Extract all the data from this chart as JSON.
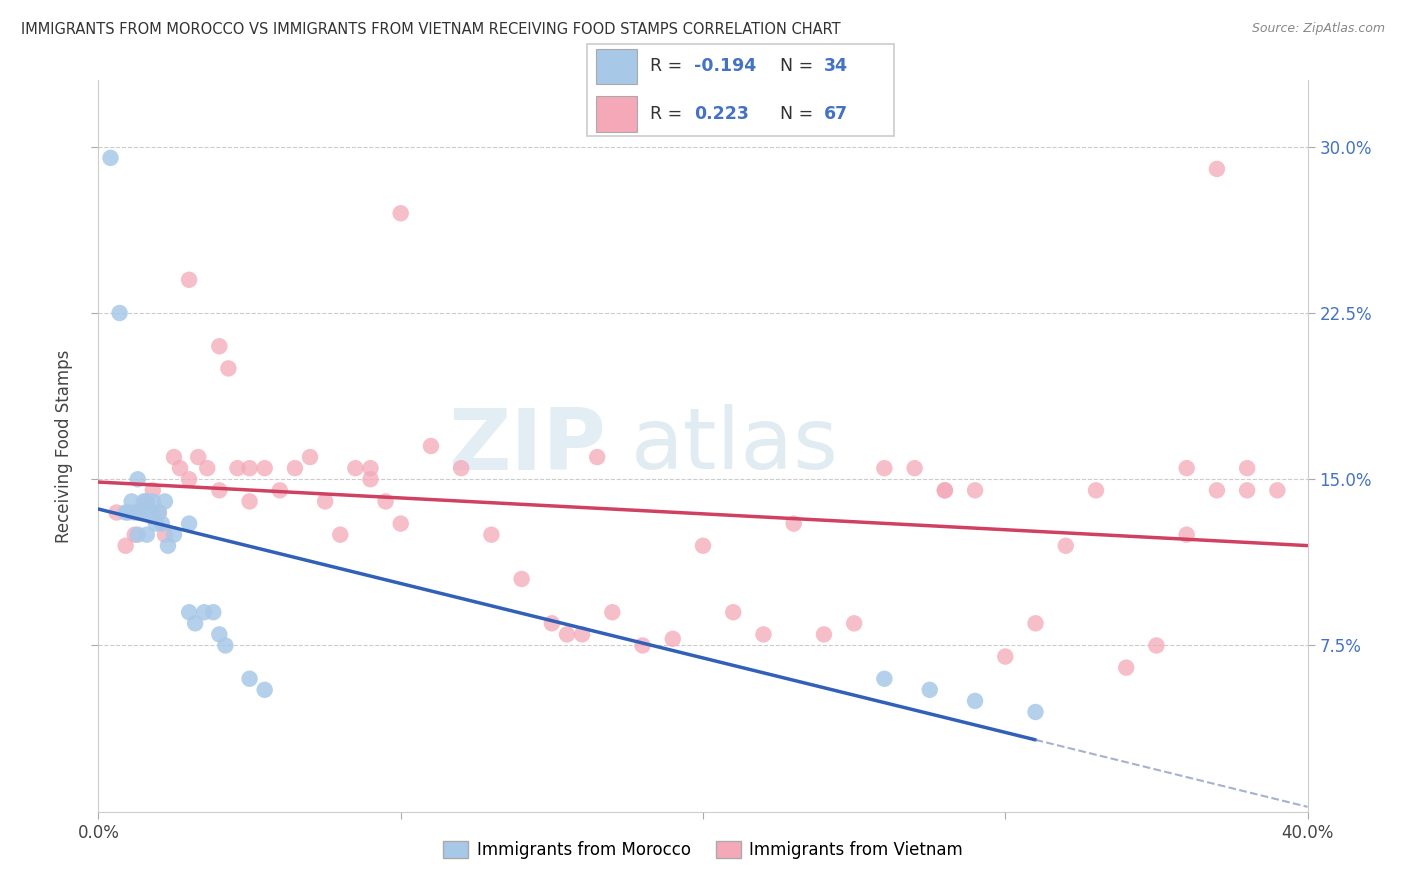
{
  "title": "IMMIGRANTS FROM MOROCCO VS IMMIGRANTS FROM VIETNAM RECEIVING FOOD STAMPS CORRELATION CHART",
  "source": "Source: ZipAtlas.com",
  "ylabel": "Receiving Food Stamps",
  "xmin": 0.0,
  "xmax": 0.4,
  "ymin": 0.0,
  "ymax": 0.33,
  "ytick_vals": [
    0.075,
    0.15,
    0.225,
    0.3
  ],
  "ytick_labels": [
    "7.5%",
    "15.0%",
    "22.5%",
    "30.0%"
  ],
  "morocco_color": "#a8c8e8",
  "vietnam_color": "#f4a8b8",
  "morocco_line_color": "#3060b8",
  "vietnam_line_color": "#d04060",
  "morocco_line_dash_color": "#8090c0",
  "watermark_text": "ZIPatlas",
  "legend_label_morocco": "Immigrants from Morocco",
  "legend_label_vietnam": "Immigrants from Vietnam",
  "morocco_x": [
    0.004,
    0.007,
    0.009,
    0.01,
    0.011,
    0.012,
    0.013,
    0.013,
    0.014,
    0.015,
    0.016,
    0.016,
    0.017,
    0.018,
    0.018,
    0.019,
    0.02,
    0.021,
    0.022,
    0.023,
    0.025,
    0.03,
    0.03,
    0.032,
    0.035,
    0.038,
    0.04,
    0.042,
    0.05,
    0.055,
    0.26,
    0.275,
    0.29,
    0.31
  ],
  "morocco_y": [
    0.295,
    0.225,
    0.135,
    0.135,
    0.14,
    0.135,
    0.125,
    0.15,
    0.135,
    0.14,
    0.125,
    0.14,
    0.135,
    0.135,
    0.14,
    0.13,
    0.135,
    0.13,
    0.14,
    0.12,
    0.125,
    0.13,
    0.09,
    0.085,
    0.09,
    0.09,
    0.08,
    0.075,
    0.06,
    0.055,
    0.06,
    0.055,
    0.05,
    0.045
  ],
  "vietnam_x": [
    0.006,
    0.009,
    0.012,
    0.013,
    0.016,
    0.018,
    0.02,
    0.022,
    0.025,
    0.027,
    0.03,
    0.033,
    0.036,
    0.04,
    0.043,
    0.046,
    0.05,
    0.055,
    0.06,
    0.065,
    0.07,
    0.075,
    0.08,
    0.085,
    0.09,
    0.095,
    0.1,
    0.11,
    0.12,
    0.13,
    0.14,
    0.15,
    0.16,
    0.17,
    0.18,
    0.19,
    0.2,
    0.21,
    0.22,
    0.23,
    0.24,
    0.25,
    0.26,
    0.27,
    0.28,
    0.29,
    0.3,
    0.31,
    0.32,
    0.33,
    0.34,
    0.35,
    0.36,
    0.37,
    0.38,
    0.39,
    0.28,
    0.155,
    0.165,
    0.03,
    0.04,
    0.05,
    0.09,
    0.1,
    0.36,
    0.37,
    0.38
  ],
  "vietnam_y": [
    0.135,
    0.12,
    0.125,
    0.135,
    0.14,
    0.145,
    0.135,
    0.125,
    0.16,
    0.155,
    0.15,
    0.16,
    0.155,
    0.145,
    0.2,
    0.155,
    0.14,
    0.155,
    0.145,
    0.155,
    0.16,
    0.14,
    0.125,
    0.155,
    0.155,
    0.14,
    0.13,
    0.165,
    0.155,
    0.125,
    0.105,
    0.085,
    0.08,
    0.09,
    0.075,
    0.078,
    0.12,
    0.09,
    0.08,
    0.13,
    0.08,
    0.085,
    0.155,
    0.155,
    0.145,
    0.145,
    0.07,
    0.085,
    0.12,
    0.145,
    0.065,
    0.075,
    0.125,
    0.145,
    0.155,
    0.145,
    0.145,
    0.08,
    0.16,
    0.24,
    0.21,
    0.155,
    0.15,
    0.27,
    0.155,
    0.29,
    0.145
  ]
}
